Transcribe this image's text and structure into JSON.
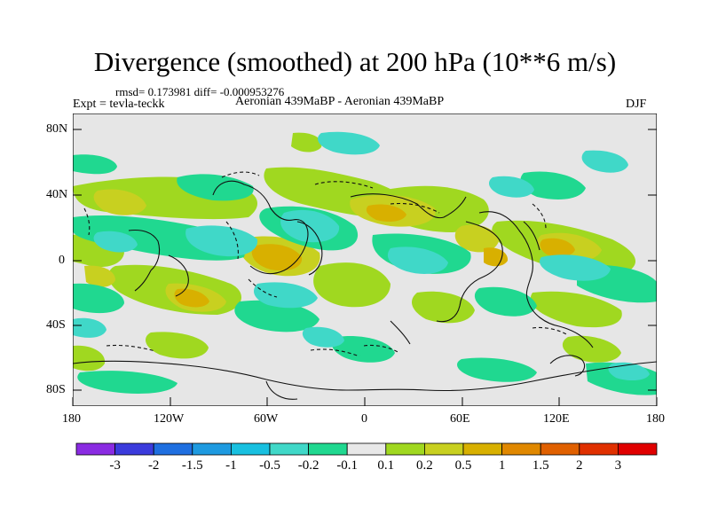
{
  "title": "Divergence (smoothed) at 200 hPa (10**6 m/s)",
  "stats": "rmsd= 0.173981 diff= -0.000953276",
  "expt": "Expt = tevla-teckk",
  "comparison": "Aeronian 439MaBP - Aeronian 439MaBP",
  "season": "DJF",
  "lat_ticks": [
    "80N",
    "40N",
    "0",
    "40S",
    "80S"
  ],
  "lon_ticks": [
    "180",
    "120W",
    "60W",
    "0",
    "60E",
    "120E",
    "180"
  ],
  "colorbar": {
    "labels": [
      "-3",
      "-2",
      "-1.5",
      "-1",
      "-0.5",
      "-0.2",
      "-0.1",
      "0.1",
      "0.2",
      "0.5",
      "1",
      "1.5",
      "2",
      "3"
    ],
    "colors": [
      "#8a2be2",
      "#3b3bdc",
      "#1f6fe0",
      "#1e9ae0",
      "#18c0e0",
      "#40d8c8",
      "#20d890",
      "#e8e8e8",
      "#a0d820",
      "#c8d020",
      "#d8b000",
      "#e08800",
      "#e06000",
      "#e03000",
      "#e00000"
    ]
  },
  "field_colors": {
    "background": "#e6e6e6",
    "neg_02": "#40d8c8",
    "neg_01": "#20d890",
    "pos_01": "#a0d820",
    "pos_02": "#c8d020",
    "pos_05": "#d8b000"
  }
}
